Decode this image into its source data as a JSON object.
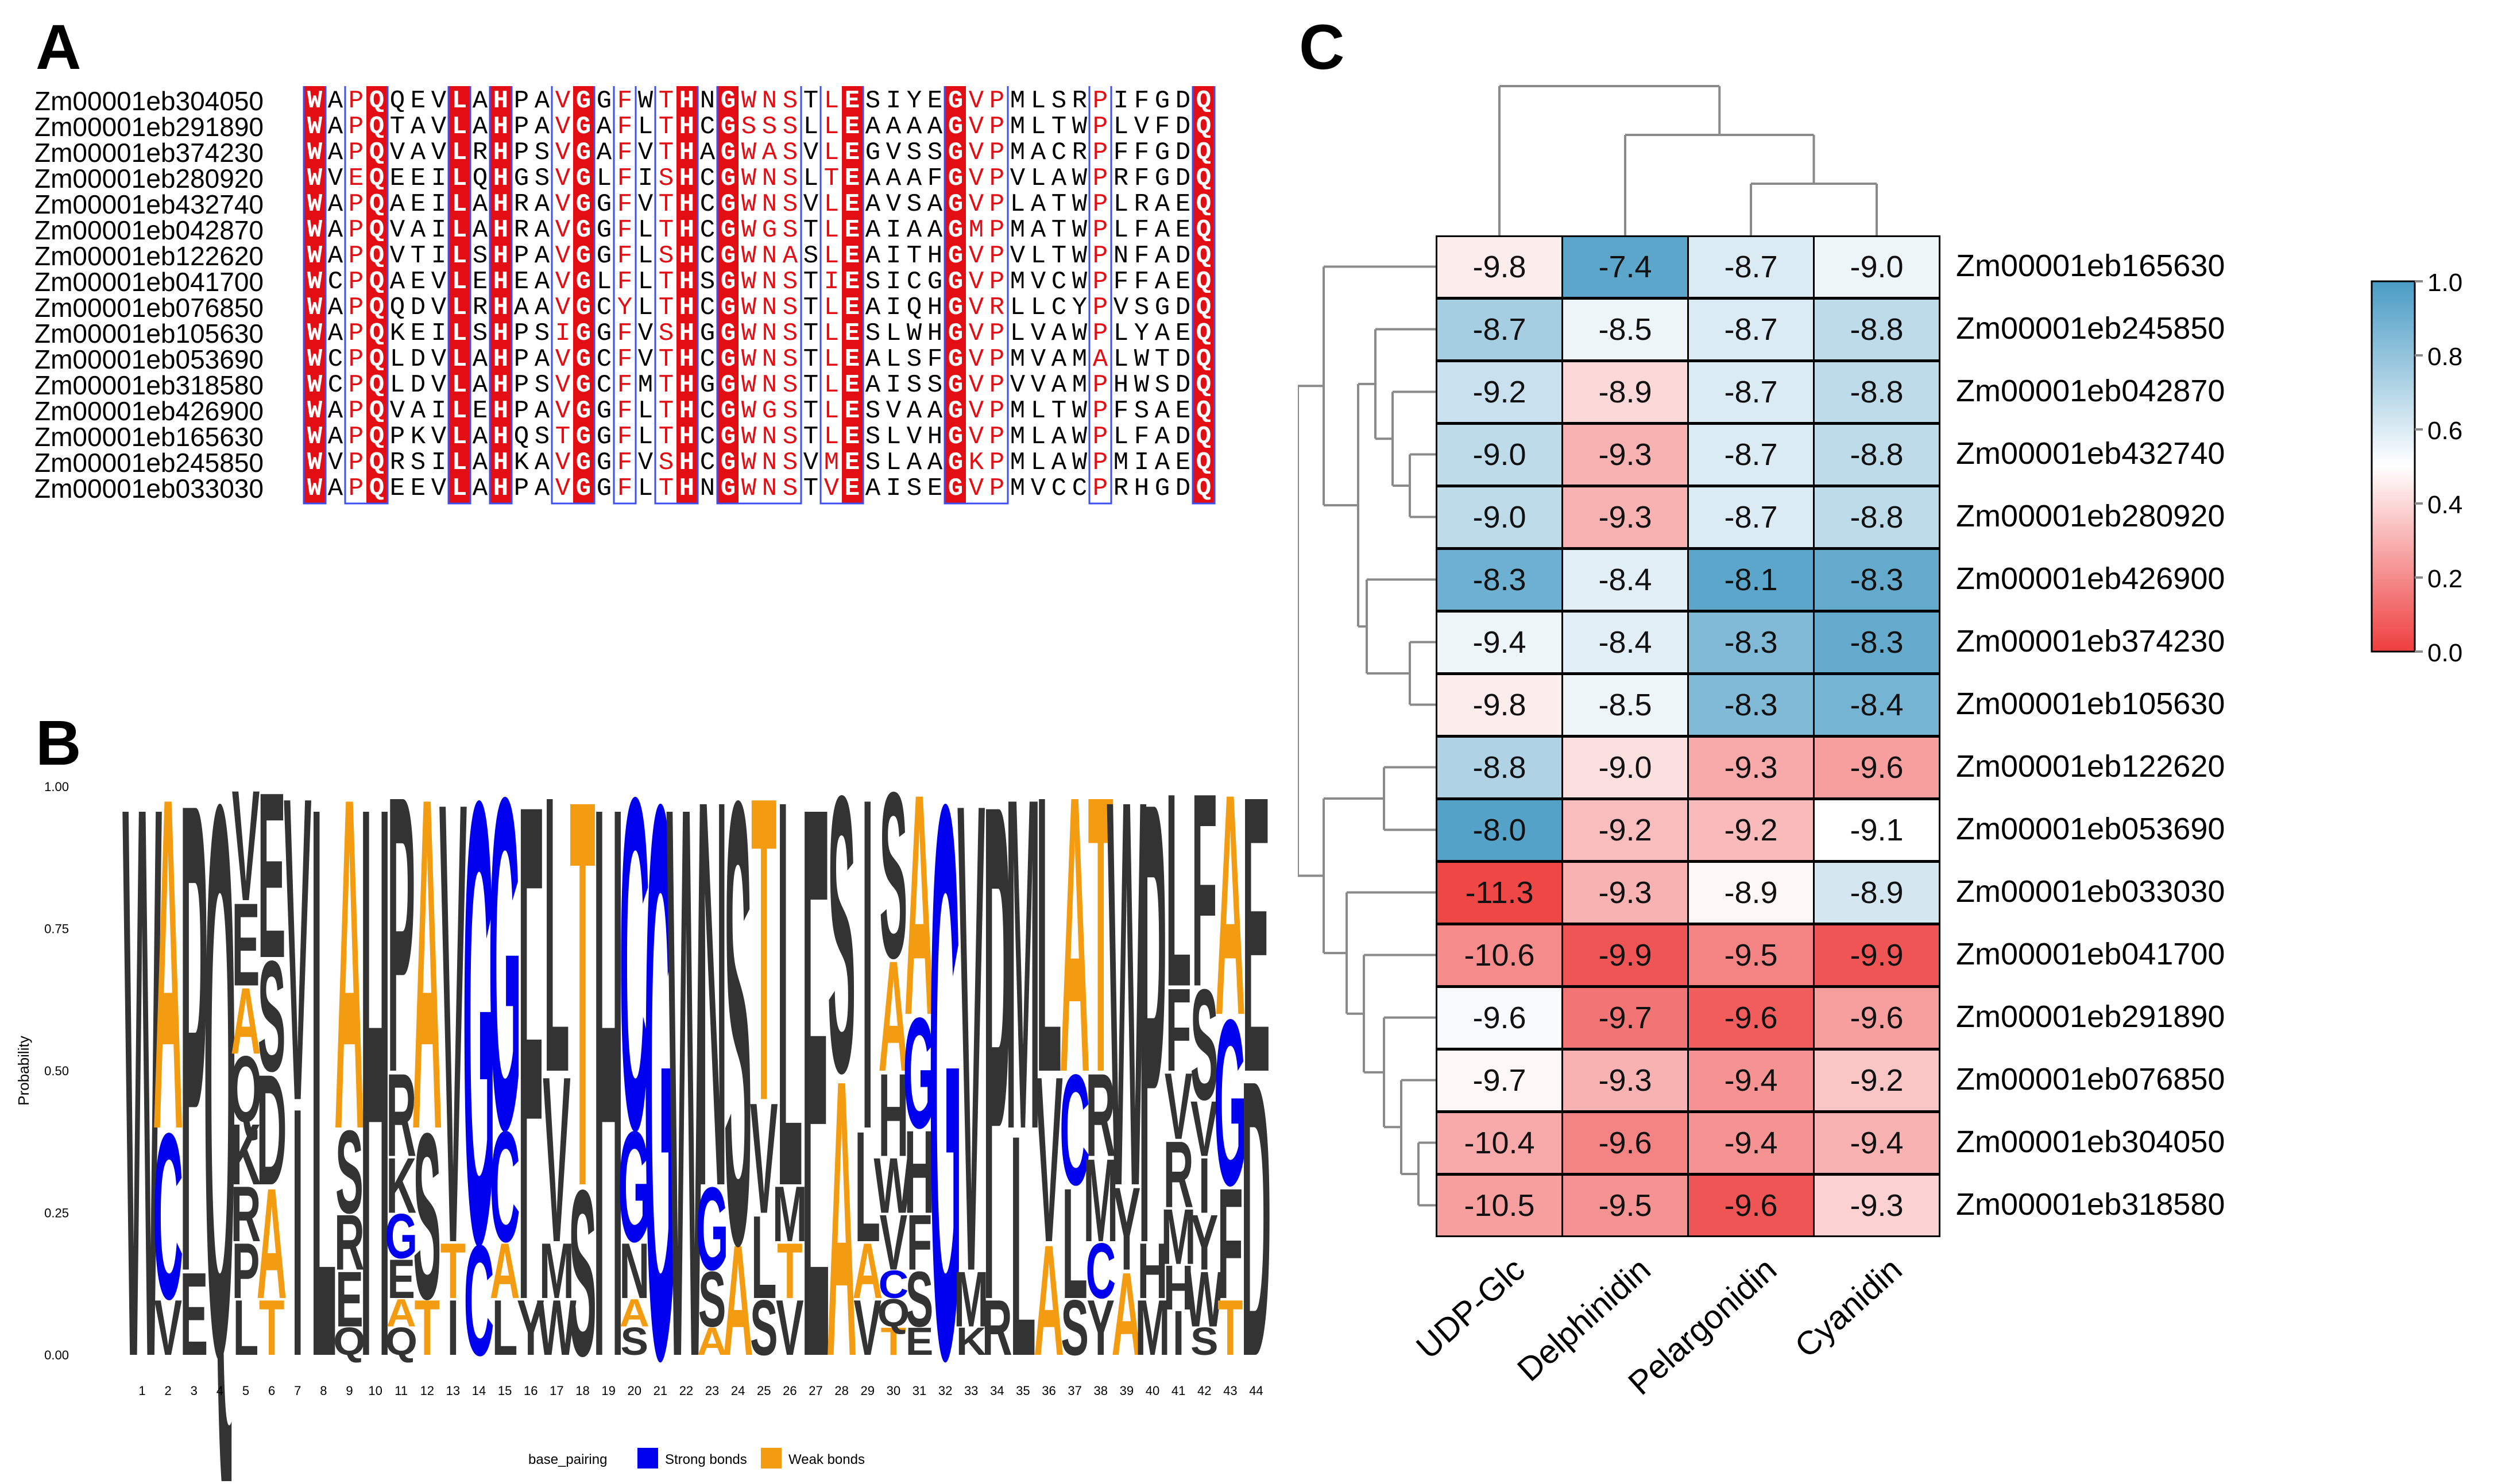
{
  "panels": {
    "a": "A",
    "b": "B",
    "c": "C"
  },
  "alignment": {
    "rows": [
      {
        "name": "Zm00001eb304050",
        "seq": "WAPQQEVLAHPAVGGFWTHNGWNSTLESIYEGVPMLSRPIFGDQ"
      },
      {
        "name": "Zm00001eb291890",
        "seq": "WAPQTAVLAHPAVGAFLTHCGSSSLLEAAAAGVPMLTWPLVFDQ"
      },
      {
        "name": "Zm00001eb374230",
        "seq": "WAPQVAVLRHPSVGAFVTHAGWASVLEGVSSGVPMACRPFFGDQ"
      },
      {
        "name": "Zm00001eb280920",
        "seq": "WVEQEEILQHGSVGLFISHCGWNSLTEAAAFGVPVLAWPRFGDQ"
      },
      {
        "name": "Zm00001eb432740",
        "seq": "WAPQAEILAHRAVGGFVTHCGWNSVLEAVSAGVPLATWPLRAEQ"
      },
      {
        "name": "Zm00001eb042870",
        "seq": "WAPQVAILAHRAVGGFLTHCGWGSTLEAIAAGMPMATWPLFAEQ"
      },
      {
        "name": "Zm00001eb122620",
        "seq": "WAPQVTILSHPAVGGFLSHCGWNASLEAITHGVPVLTWPNFADQ"
      },
      {
        "name": "Zm00001eb041700",
        "seq": "WCPQAEVLEHEAVGLFLTHSGWNSTIESICGGVPMVCWPFFAEQ"
      },
      {
        "name": "Zm00001eb076850",
        "seq": "WAPQQDVLRHAAVGCYLTHCGWNSTLEAIQHGVRLLCYPVSGDQ"
      },
      {
        "name": "Zm00001eb105630",
        "seq": "WAPQKEILSHPSIGGFVSHGGWNSTLESLWHGVPLVAWPLYAEQ"
      },
      {
        "name": "Zm00001eb053690",
        "seq": "WCPQLDVLAHPAVGCFVTHCGWNSTLEALSFGVPMVAMALWTDQ"
      },
      {
        "name": "Zm00001eb318580",
        "seq": "WCPQLDVLAHPSVGCFMTHGGWNSTLEAISSGVPVVAMPHWSDQ"
      },
      {
        "name": "Zm00001eb426900",
        "seq": "WAPQVAILEHPAVGGFLTHCGWGSTLESVAAGVPMLTWPFSAEQ"
      },
      {
        "name": "Zm00001eb165630",
        "seq": "WAPQPKVLAHQSTGGFLTHCGWNSTLESLVHGVPMLAWPLFADQ"
      },
      {
        "name": "Zm00001eb245850",
        "seq": "WVPQRSILAHKAVGGFVSHCGWNSVMESLAAGKPMLAWPMIAEQ"
      },
      {
        "name": "Zm00001eb033030",
        "seq": "WAPQEEVLAHPAVGGFLTHNGWNSTVEAISEGVPMVCCPRHGDQ"
      }
    ]
  },
  "logo": {
    "ylabel": "Probability",
    "yticks": [
      "0.00",
      "0.25",
      "0.50",
      "0.75",
      "1.00"
    ],
    "positions": [
      "1",
      "2",
      "3",
      "4",
      "5",
      "6",
      "7",
      "8",
      "9",
      "10",
      "11",
      "12",
      "13",
      "14",
      "15",
      "16",
      "17",
      "18",
      "19",
      "20",
      "21",
      "22",
      "23",
      "24",
      "25",
      "26",
      "27",
      "28",
      "29",
      "30",
      "31",
      "32",
      "33",
      "34",
      "35",
      "36",
      "37",
      "38",
      "39",
      "40",
      "41",
      "42",
      "43",
      "44"
    ],
    "legend": {
      "title": "base_pairing",
      "strong": "Strong bonds",
      "weak": "Weak bonds",
      "strong_color": "#0000ee",
      "weak_color": "#f39c12",
      "other_color": "#333333"
    },
    "columns": [
      [
        [
          "W",
          1.0,
          "o"
        ]
      ],
      [
        [
          "A",
          0.6,
          "w"
        ],
        [
          "C",
          0.3,
          "s"
        ],
        [
          "V",
          0.1,
          "o"
        ]
      ],
      [
        [
          "P",
          0.85,
          "o"
        ],
        [
          "E",
          0.15,
          "o"
        ]
      ],
      [
        [
          "Q",
          1.0,
          "o"
        ]
      ],
      [
        [
          "V",
          0.2,
          "o"
        ],
        [
          "E",
          0.15,
          "o"
        ],
        [
          "Q",
          0.12,
          "o"
        ],
        [
          "A",
          0.12,
          "w"
        ],
        [
          "L",
          0.1,
          "o"
        ],
        [
          "P",
          0.1,
          "o"
        ],
        [
          "R",
          0.1,
          "o"
        ],
        [
          "K",
          0.11,
          "o"
        ]
      ],
      [
        [
          "E",
          0.3,
          "o"
        ],
        [
          "A",
          0.2,
          "w"
        ],
        [
          "D",
          0.2,
          "o"
        ],
        [
          "T",
          0.1,
          "w"
        ],
        [
          "S",
          0.2,
          "o"
        ]
      ],
      [
        [
          "V",
          0.55,
          "o"
        ],
        [
          "I",
          0.45,
          "o"
        ]
      ],
      [
        [
          "L",
          1.0,
          "o"
        ]
      ],
      [
        [
          "A",
          0.6,
          "w"
        ],
        [
          "S",
          0.15,
          "o"
        ],
        [
          "E",
          0.1,
          "o"
        ],
        [
          "R",
          0.1,
          "o"
        ],
        [
          "Q",
          0.05,
          "o"
        ]
      ],
      [
        [
          "H",
          1.0,
          "o"
        ]
      ],
      [
        [
          "P",
          0.5,
          "o"
        ],
        [
          "R",
          0.15,
          "o"
        ],
        [
          "K",
          0.1,
          "o"
        ],
        [
          "G",
          0.08,
          "s"
        ],
        [
          "E",
          0.07,
          "o"
        ],
        [
          "Q",
          0.05,
          "o"
        ],
        [
          "A",
          0.05,
          "w"
        ]
      ],
      [
        [
          "A",
          0.6,
          "w"
        ],
        [
          "S",
          0.3,
          "o"
        ],
        [
          "T",
          0.1,
          "w"
        ]
      ],
      [
        [
          "V",
          0.8,
          "o"
        ],
        [
          "I",
          0.1,
          "o"
        ],
        [
          "T",
          0.1,
          "w"
        ]
      ],
      [
        [
          "G",
          0.8,
          "s"
        ],
        [
          "C",
          0.2,
          "s"
        ]
      ],
      [
        [
          "G",
          0.6,
          "s"
        ],
        [
          "C",
          0.2,
          "s"
        ],
        [
          "L",
          0.1,
          "o"
        ],
        [
          "A",
          0.1,
          "w"
        ]
      ],
      [
        [
          "F",
          0.9,
          "o"
        ],
        [
          "Y",
          0.1,
          "o"
        ]
      ],
      [
        [
          "L",
          0.5,
          "o"
        ],
        [
          "V",
          0.3,
          "o"
        ],
        [
          "W",
          0.1,
          "o"
        ],
        [
          "M",
          0.1,
          "o"
        ]
      ],
      [
        [
          "T",
          0.7,
          "w"
        ],
        [
          "S",
          0.3,
          "o"
        ]
      ],
      [
        [
          "H",
          1.0,
          "o"
        ]
      ],
      [
        [
          "C",
          0.6,
          "s"
        ],
        [
          "G",
          0.2,
          "s"
        ],
        [
          "N",
          0.1,
          "o"
        ],
        [
          "S",
          0.05,
          "o"
        ],
        [
          "A",
          0.05,
          "w"
        ]
      ],
      [
        [
          "G",
          1.0,
          "s"
        ]
      ],
      [
        [
          "W",
          1.0,
          "o"
        ]
      ],
      [
        [
          "N",
          0.7,
          "o"
        ],
        [
          "G",
          0.15,
          "s"
        ],
        [
          "S",
          0.1,
          "o"
        ],
        [
          "A",
          0.05,
          "w"
        ]
      ],
      [
        [
          "S",
          0.8,
          "o"
        ],
        [
          "A",
          0.2,
          "w"
        ]
      ],
      [
        [
          "T",
          0.55,
          "w"
        ],
        [
          "V",
          0.2,
          "o"
        ],
        [
          "L",
          0.15,
          "o"
        ],
        [
          "S",
          0.1,
          "o"
        ]
      ],
      [
        [
          "L",
          0.7,
          "o"
        ],
        [
          "V",
          0.1,
          "o"
        ],
        [
          "T",
          0.1,
          "w"
        ],
        [
          "M",
          0.1,
          "o"
        ]
      ],
      [
        [
          "E",
          1.0,
          "o"
        ]
      ],
      [
        [
          "A",
          0.5,
          "w"
        ],
        [
          "S",
          0.5,
          "o"
        ]
      ],
      [
        [
          "I",
          0.6,
          "o"
        ],
        [
          "L",
          0.2,
          "o"
        ],
        [
          "V",
          0.1,
          "o"
        ],
        [
          "A",
          0.1,
          "w"
        ]
      ],
      [
        [
          "S",
          0.3,
          "o"
        ],
        [
          "A",
          0.2,
          "w"
        ],
        [
          "H",
          0.15,
          "o"
        ],
        [
          "V",
          0.1,
          "o"
        ],
        [
          "W",
          0.1,
          "o"
        ],
        [
          "T",
          0.05,
          "w"
        ],
        [
          "Q",
          0.05,
          "o"
        ],
        [
          "C",
          0.05,
          "s"
        ]
      ],
      [
        [
          "A",
          0.4,
          "w"
        ],
        [
          "G",
          0.2,
          "s"
        ],
        [
          "H",
          0.15,
          "o"
        ],
        [
          "S",
          0.1,
          "o"
        ],
        [
          "F",
          0.1,
          "o"
        ],
        [
          "E",
          0.05,
          "o"
        ]
      ],
      [
        [
          "G",
          1.0,
          "s"
        ]
      ],
      [
        [
          "V",
          0.85,
          "o"
        ],
        [
          "K",
          0.05,
          "o"
        ],
        [
          "M",
          0.1,
          "o"
        ]
      ],
      [
        [
          "P",
          0.9,
          "o"
        ],
        [
          "R",
          0.1,
          "o"
        ]
      ],
      [
        [
          "M",
          0.6,
          "o"
        ],
        [
          "L",
          0.4,
          "o"
        ]
      ],
      [
        [
          "L",
          0.5,
          "o"
        ],
        [
          "V",
          0.3,
          "o"
        ],
        [
          "A",
          0.2,
          "w"
        ]
      ],
      [
        [
          "A",
          0.5,
          "w"
        ],
        [
          "L",
          0.2,
          "o"
        ],
        [
          "C",
          0.2,
          "s"
        ],
        [
          "S",
          0.1,
          "o"
        ]
      ],
      [
        [
          "T",
          0.5,
          "w"
        ],
        [
          "M",
          0.15,
          "o"
        ],
        [
          "R",
          0.15,
          "o"
        ],
        [
          "Y",
          0.1,
          "o"
        ],
        [
          "C",
          0.1,
          "s"
        ]
      ],
      [
        [
          "W",
          0.7,
          "o"
        ],
        [
          "A",
          0.15,
          "w"
        ],
        [
          "Y",
          0.15,
          "o"
        ]
      ],
      [
        [
          "P",
          0.8,
          "o"
        ],
        [
          "M",
          0.1,
          "o"
        ],
        [
          "H",
          0.1,
          "o"
        ]
      ],
      [
        [
          "L",
          0.35,
          "o"
        ],
        [
          "F",
          0.15,
          "o"
        ],
        [
          "R",
          0.12,
          "o"
        ],
        [
          "V",
          0.12,
          "o"
        ],
        [
          "M",
          0.1,
          "o"
        ],
        [
          "I",
          0.08,
          "o"
        ],
        [
          "H",
          0.08,
          "o"
        ]
      ],
      [
        [
          "F",
          0.35,
          "o"
        ],
        [
          "S",
          0.2,
          "o"
        ],
        [
          "W",
          0.1,
          "o"
        ],
        [
          "Y",
          0.1,
          "o"
        ],
        [
          "I",
          0.1,
          "o"
        ],
        [
          "V",
          0.1,
          "o"
        ],
        [
          "S",
          0.05,
          "o"
        ]
      ],
      [
        [
          "A",
          0.4,
          "w"
        ],
        [
          "G",
          0.3,
          "s"
        ],
        [
          "T",
          0.1,
          "w"
        ],
        [
          "F",
          0.2,
          "o"
        ]
      ],
      [
        [
          "D",
          0.5,
          "o"
        ],
        [
          "E",
          0.5,
          "o"
        ]
      ]
    ]
  },
  "heatmap": {
    "columns": [
      "UDP-Glc",
      "Delphinidin",
      "Pelargonidin",
      "Cyanidin"
    ],
    "rows": [
      {
        "name": "Zm00001eb165630",
        "values": [
          "-9.8",
          "-7.4",
          "-8.7",
          "-9.0"
        ],
        "colors": [
          0.45,
          0.95,
          0.6,
          0.55
        ]
      },
      {
        "name": "Zm00001eb245850",
        "values": [
          "-8.7",
          "-8.5",
          "-8.7",
          "-8.8"
        ],
        "colors": [
          0.75,
          0.55,
          0.6,
          0.68
        ]
      },
      {
        "name": "Zm00001eb042870",
        "values": [
          "-9.2",
          "-8.9",
          "-8.7",
          "-8.8"
        ],
        "colors": [
          0.65,
          0.4,
          0.6,
          0.68
        ]
      },
      {
        "name": "Zm00001eb432740",
        "values": [
          "-9.0",
          "-9.3",
          "-8.7",
          "-8.8"
        ],
        "colors": [
          0.68,
          0.3,
          0.6,
          0.68
        ]
      },
      {
        "name": "Zm00001eb280920",
        "values": [
          "-9.0",
          "-9.3",
          "-8.7",
          "-8.8"
        ],
        "colors": [
          0.68,
          0.3,
          0.6,
          0.68
        ]
      },
      {
        "name": "Zm00001eb426900",
        "values": [
          "-8.3",
          "-8.4",
          "-8.1",
          "-8.3"
        ],
        "colors": [
          0.9,
          0.58,
          0.95,
          0.93
        ]
      },
      {
        "name": "Zm00001eb374230",
        "values": [
          "-9.4",
          "-8.4",
          "-8.3",
          "-8.3"
        ],
        "colors": [
          0.55,
          0.58,
          0.85,
          0.93
        ]
      },
      {
        "name": "Zm00001eb105630",
        "values": [
          "-9.8",
          "-8.5",
          "-8.3",
          "-8.4"
        ],
        "colors": [
          0.45,
          0.55,
          0.85,
          0.88
        ]
      },
      {
        "name": "Zm00001eb122620",
        "values": [
          "-8.8",
          "-9.0",
          "-9.3",
          "-9.6"
        ],
        "colors": [
          0.72,
          0.42,
          0.28,
          0.25
        ]
      },
      {
        "name": "Zm00001eb053690",
        "values": [
          "-8.0",
          "-9.2",
          "-9.2",
          "-9.1"
        ],
        "colors": [
          0.97,
          0.33,
          0.32,
          0.5
        ]
      },
      {
        "name": "Zm00001eb033030",
        "values": [
          "-11.3",
          "-9.3",
          "-8.9",
          "-8.9"
        ],
        "colors": [
          0.02,
          0.3,
          0.48,
          0.62
        ]
      },
      {
        "name": "Zm00001eb041700",
        "values": [
          "-10.6",
          "-9.9",
          "-9.5",
          "-9.9"
        ],
        "colors": [
          0.2,
          0.06,
          0.18,
          0.06
        ]
      },
      {
        "name": "Zm00001eb291890",
        "values": [
          "-9.6",
          "-9.7",
          "-9.6",
          "-9.6"
        ],
        "colors": [
          0.52,
          0.14,
          0.08,
          0.25
        ]
      },
      {
        "name": "Zm00001eb076850",
        "values": [
          "-9.7",
          "-9.3",
          "-9.4",
          "-9.2"
        ],
        "colors": [
          0.48,
          0.3,
          0.22,
          0.35
        ]
      },
      {
        "name": "Zm00001eb304050",
        "values": [
          "-10.4",
          "-9.6",
          "-9.4",
          "-9.4"
        ],
        "colors": [
          0.28,
          0.18,
          0.22,
          0.3
        ]
      },
      {
        "name": "Zm00001eb318580",
        "values": [
          "-10.5",
          "-9.5",
          "-9.6",
          "-9.3"
        ],
        "colors": [
          0.25,
          0.22,
          0.06,
          0.38
        ]
      }
    ],
    "colorbar": {
      "ticks": [
        "0.0",
        "0.2",
        "0.4",
        "0.6",
        "0.8",
        "1.0"
      ],
      "low": "#ee3e3e",
      "mid": "#ffffff",
      "high": "#4a9cc5"
    }
  }
}
